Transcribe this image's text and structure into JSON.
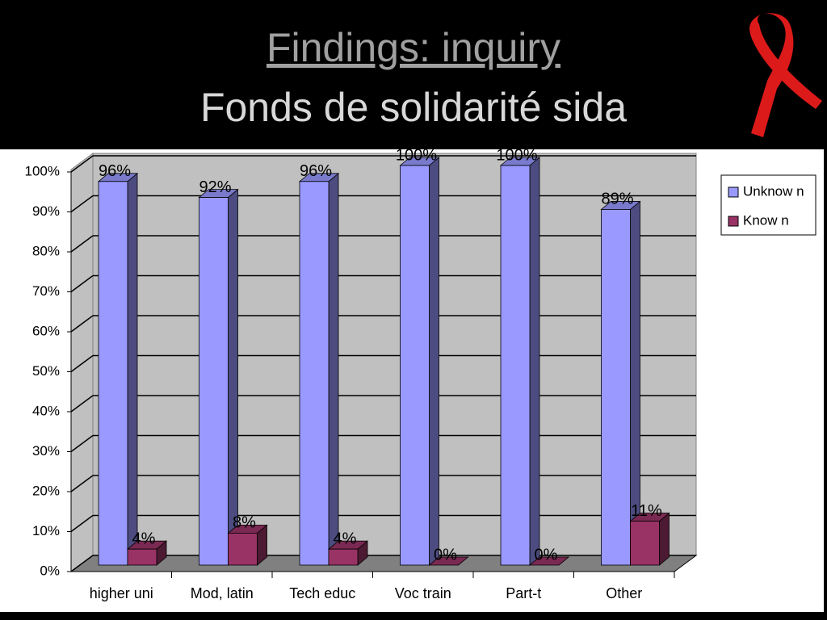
{
  "chart_data": {
    "type": "bar3d",
    "title": "Findings: inquiry",
    "subtitle": "Fonds de solidarité sida",
    "categories": [
      "higher uni",
      "Mod, latin",
      "Tech educ",
      "Voc train",
      "Part-t",
      "Other"
    ],
    "series": [
      {
        "name": "Unknow n",
        "color": "#9999ff",
        "values": [
          96,
          92,
          96,
          100,
          100,
          89
        ],
        "value_labels": [
          "96%",
          "92%",
          "96%",
          "100%",
          "100%",
          "89%"
        ]
      },
      {
        "name": "Know n",
        "color": "#993366",
        "values": [
          4,
          8,
          4,
          0,
          0,
          11
        ],
        "value_labels": [
          "4%",
          "8%",
          "4%",
          "0%",
          "0%",
          "11%"
        ]
      }
    ],
    "ylim": [
      0,
      100
    ],
    "yticks": [
      {
        "value": 0,
        "label": "0%"
      },
      {
        "value": 10,
        "label": "10%"
      },
      {
        "value": 20,
        "label": "20%"
      },
      {
        "value": 30,
        "label": "30%"
      },
      {
        "value": 40,
        "label": "40%"
      },
      {
        "value": 50,
        "label": "50%"
      },
      {
        "value": 60,
        "label": "60%"
      },
      {
        "value": 70,
        "label": "70%"
      },
      {
        "value": 80,
        "label": "80%"
      },
      {
        "value": 90,
        "label": "90%"
      },
      {
        "value": 100,
        "label": "100%"
      }
    ],
    "grid": true,
    "legend": "right"
  }
}
